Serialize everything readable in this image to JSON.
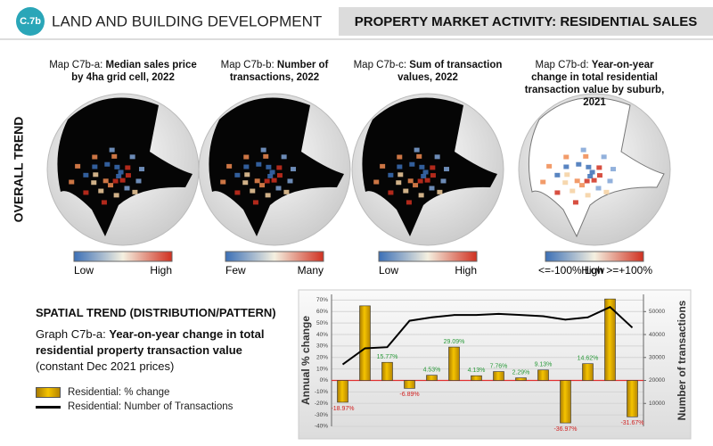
{
  "header": {
    "badge": "C.7b",
    "section": "LAND AND BUILDING DEVELOPMENT",
    "title": "PROPERTY MARKET ACTIVITY: RESIDENTIAL SALES"
  },
  "side_label": "OVERALL TREND",
  "maps": [
    {
      "label": "Map C7b-a: ",
      "title": "Median sales price by 4ha grid cell, 2022",
      "legend": [
        "Low",
        "High"
      ]
    },
    {
      "label": "Map C7b-b: ",
      "title": "Number of transactions, 2022",
      "legend": [
        "Few",
        "Many"
      ]
    },
    {
      "label": "Map C7b-c: ",
      "title": "Sum of transaction values, 2022",
      "legend": [
        "Low",
        "High"
      ]
    },
    {
      "label": "Map C7b-d: ",
      "title": "Year-on-year change in total residential transaction value by suburb, 2021",
      "legend": [
        "<=-100% Low",
        "High >=+100%"
      ]
    }
  ],
  "spatial_title": "SPATIAL TREND (DISTRIBUTION/PATTERN)",
  "graph_caption": {
    "label": "Graph C7b-a: ",
    "title": "Year-on-year change in total residential property transaction value",
    "note": " (constant Dec 2021 prices)"
  },
  "chart_data": {
    "type": "bar-line",
    "categories": [
      null,
      null,
      null,
      null,
      null,
      null,
      null,
      null,
      null,
      null,
      null,
      null,
      null,
      null
    ],
    "y_label": "Annual % change",
    "y2_label": "Number of transactions",
    "series": [
      {
        "name": "Residential: % change",
        "type": "bar",
        "color": "#e0a800",
        "values": [
          -18.97,
          65,
          15.77,
          -6.89,
          4.53,
          29.09,
          4.13,
          7.76,
          2.29,
          9.13,
          -36.97,
          14.62,
          71,
          -31.67
        ],
        "value_labels": [
          "-18.97%",
          null,
          "15.77%",
          "-6.89%",
          "4.53%",
          "29.09%",
          "4.13%",
          "7.76%",
          "2.29%",
          "9.13%",
          "-36.97%",
          "14.62%",
          null,
          "-31.67%"
        ]
      },
      {
        "name": "Residential: Number of Transactions",
        "type": "line",
        "axis": "y2",
        "color": "#000000",
        "values": [
          27000,
          34000,
          34500,
          46000,
          47500,
          48500,
          48500,
          49000,
          48500,
          48000,
          46500,
          47500,
          52000,
          43000
        ]
      }
    ],
    "ylim": [
      -40,
      75
    ],
    "yticks": [
      {
        "value": -40,
        "label": "-40%"
      },
      {
        "value": -30,
        "label": "-30%"
      },
      {
        "value": -20,
        "label": "-20%"
      },
      {
        "value": -10,
        "label": "-10%"
      },
      {
        "value": 0,
        "label": "0%"
      },
      {
        "value": 10,
        "label": "10%"
      },
      {
        "value": 20,
        "label": "20%"
      },
      {
        "value": 30,
        "label": "30%"
      },
      {
        "value": 40,
        "label": "40%"
      },
      {
        "value": 50,
        "label": "50%"
      },
      {
        "value": 60,
        "label": "60%"
      },
      {
        "value": 70,
        "label": "70%"
      }
    ],
    "y2lim": [
      0,
      57500
    ],
    "y2ticks": [
      10000,
      20000,
      30000,
      40000,
      50000
    ],
    "grid": true
  }
}
